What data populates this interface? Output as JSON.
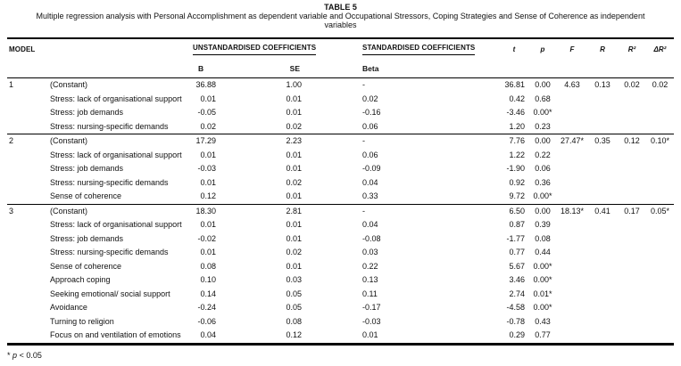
{
  "title": "TABLE 5",
  "subtitle_line1": "Multiple regression analysis with Personal Accomplishment as dependent variable and Occupational Stressors,  Coping Strategies and Sense of Coherence as independent",
  "subtitle_line2": "variables",
  "footnote": {
    "star": "*",
    "var": "p",
    "rest": "< 0.05"
  },
  "table": {
    "headers": {
      "model": "MODEL",
      "unstd": "UNSTANDARDISED COEFFICIENTS",
      "std": "STANDARDISED COEFFICIENTS",
      "b": "B",
      "se": "SE",
      "beta": "Beta",
      "t": "t",
      "p": "p",
      "f": "F",
      "r": "R",
      "r2": "R²",
      "dr2": "ΔR²"
    },
    "models": [
      {
        "number": "1",
        "rows": [
          {
            "variable": "(Constant)",
            "b": "36.88",
            "se": "1.00",
            "beta": "-",
            "t": "36.81",
            "p": "0.00",
            "f": "4.63",
            "r": "0.13",
            "r2": "0.02",
            "dr2": "0.02"
          },
          {
            "variable": "Stress: lack of organisational support",
            "b": "0.01",
            "se": "0.01",
            "beta": "0.02",
            "t": "0.42",
            "p": "0.68",
            "f": "",
            "r": "",
            "r2": "",
            "dr2": ""
          },
          {
            "variable": "Stress: job demands",
            "b": "-0.05",
            "se": "0.01",
            "beta": "-0.16",
            "t": "-3.46",
            "p": "0.00*",
            "f": "",
            "r": "",
            "r2": "",
            "dr2": ""
          },
          {
            "variable": "Stress: nursing-specific demands",
            "b": "0.02",
            "se": "0.02",
            "beta": "0.06",
            "t": "1.20",
            "p": "0.23",
            "f": "",
            "r": "",
            "r2": "",
            "dr2": ""
          }
        ]
      },
      {
        "number": "2",
        "rows": [
          {
            "variable": "(Constant)",
            "b": "17.29",
            "se": "2.23",
            "beta": "-",
            "t": "7.76",
            "p": "0.00",
            "f": "27.47*",
            "r": "0.35",
            "r2": "0.12",
            "dr2": "0.10*"
          },
          {
            "variable": "Stress: lack of organisational support",
            "b": "0.01",
            "se": "0.01",
            "beta": "0.06",
            "t": "1.22",
            "p": "0.22",
            "f": "",
            "r": "",
            "r2": "",
            "dr2": ""
          },
          {
            "variable": "Stress: job demands",
            "b": "-0.03",
            "se": "0.01",
            "beta": "-0.09",
            "t": "-1.90",
            "p": "0.06",
            "f": "",
            "r": "",
            "r2": "",
            "dr2": ""
          },
          {
            "variable": "Stress: nursing-specific demands",
            "b": "0.01",
            "se": "0.02",
            "beta": "0.04",
            "t": "0.92",
            "p": "0.36",
            "f": "",
            "r": "",
            "r2": "",
            "dr2": ""
          },
          {
            "variable": "Sense of coherence",
            "b": "0.12",
            "se": "0.01",
            "beta": "0.33",
            "t": "9.72",
            "p": "0.00*",
            "f": "",
            "r": "",
            "r2": "",
            "dr2": ""
          }
        ]
      },
      {
        "number": "3",
        "rows": [
          {
            "variable": "(Constant)",
            "b": "18.30",
            "se": "2.81",
            "beta": "-",
            "t": "6.50",
            "p": "0.00",
            "f": "18.13*",
            "r": "0.41",
            "r2": "0.17",
            "dr2": "0.05*"
          },
          {
            "variable": "Stress: lack of organisational support",
            "b": "0.01",
            "se": "0.01",
            "beta": "0.04",
            "t": "0.87",
            "p": "0.39",
            "f": "",
            "r": "",
            "r2": "",
            "dr2": ""
          },
          {
            "variable": "Stress: job demands",
            "b": "-0.02",
            "se": "0.01",
            "beta": "-0.08",
            "t": "-1.77",
            "p": "0.08",
            "f": "",
            "r": "",
            "r2": "",
            "dr2": ""
          },
          {
            "variable": "Stress: nursing-specific demands",
            "b": "0.01",
            "se": "0.02",
            "beta": "0.03",
            "t": "0.77",
            "p": "0.44",
            "f": "",
            "r": "",
            "r2": "",
            "dr2": ""
          },
          {
            "variable": "Sense of coherence",
            "b": "0.08",
            "se": "0.01",
            "beta": "0.22",
            "t": "5.67",
            "p": "0.00*",
            "f": "",
            "r": "",
            "r2": "",
            "dr2": ""
          },
          {
            "variable": "Approach coping",
            "b": "0.10",
            "se": "0.03",
            "beta": "0.13",
            "t": "3.46",
            "p": "0.00*",
            "f": "",
            "r": "",
            "r2": "",
            "dr2": ""
          },
          {
            "variable": "Seeking emotional/ social support",
            "b": "0.14",
            "se": "0.05",
            "beta": "0.11",
            "t": "2.74",
            "p": "0.01*",
            "f": "",
            "r": "",
            "r2": "",
            "dr2": ""
          },
          {
            "variable": "Avoidance",
            "b": "-0.24",
            "se": "0.05",
            "beta": "-0.17",
            "t": "-4.58",
            "p": "0.00*",
            "f": "",
            "r": "",
            "r2": "",
            "dr2": ""
          },
          {
            "variable": "Turning to religion",
            "b": "-0.06",
            "se": "0.08",
            "beta": "-0.03",
            "t": "-0.78",
            "p": "0.43",
            "f": "",
            "r": "",
            "r2": "",
            "dr2": ""
          },
          {
            "variable": "Focus on and ventilation of emotions",
            "b": "0.04",
            "se": "0.12",
            "beta": "0.01",
            "t": "0.29",
            "p": "0.77",
            "f": "",
            "r": "",
            "r2": "",
            "dr2": ""
          }
        ]
      }
    ]
  }
}
